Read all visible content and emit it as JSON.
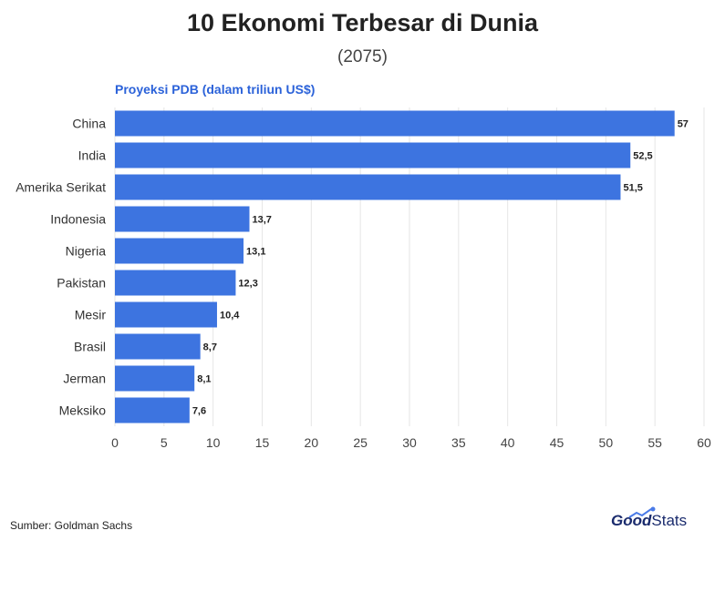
{
  "colors": {
    "bar": "#3d74e0",
    "accent_text": "#2b62d9",
    "grid": "#e6e6e6",
    "logo_dark": "#1a2b6d",
    "logo_spark": "#4a7be8"
  },
  "chart_data": {
    "type": "bar",
    "orientation": "horizontal",
    "title": "10 Ekonomi Terbesar di Dunia",
    "subtitle": "(2075)",
    "value_axis_label": "Proyeksi PDB (dalam triliun US$)",
    "categories": [
      "China",
      "India",
      "Amerika Serikat",
      "Indonesia",
      "Nigeria",
      "Pakistan",
      "Mesir",
      "Brasil",
      "Jerman",
      "Meksiko"
    ],
    "values": [
      57,
      52.5,
      51.5,
      13.7,
      13.1,
      12.3,
      10.4,
      8.7,
      8.1,
      7.6
    ],
    "data_labels": [
      "57",
      "52,5",
      "51,5",
      "13,7",
      "13,1",
      "12,3",
      "10,4",
      "8,7",
      "8,1",
      "7,6"
    ],
    "xlim": [
      0,
      60
    ],
    "x_ticks": [
      0,
      5,
      10,
      15,
      20,
      25,
      30,
      35,
      40,
      45,
      50,
      55,
      60
    ],
    "grid": true,
    "legend": "none"
  },
  "footer": {
    "source": "Sumber: Goldman Sachs",
    "logo_good": "Good",
    "logo_stats": "Stats"
  }
}
